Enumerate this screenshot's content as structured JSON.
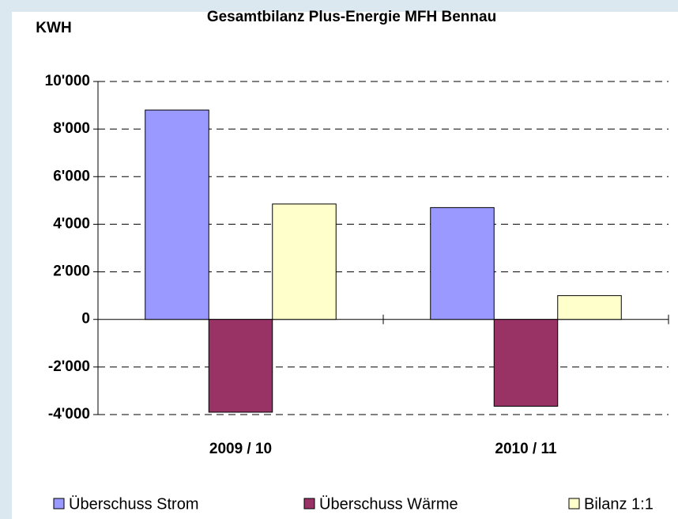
{
  "chart_data": {
    "type": "bar",
    "title": "Gesamtbilanz Plus-Energie MFH Bennau",
    "y_label": "KWH",
    "categories": [
      "2009 / 10",
      "2010 / 11"
    ],
    "series": [
      {
        "name": "Überschuss Strom",
        "color": "#9999ff",
        "values": [
          8800,
          4700
        ]
      },
      {
        "name": "Überschuss Wärme",
        "color": "#993366",
        "values": [
          -3900,
          -3650
        ]
      },
      {
        "name": "Bilanz 1:1",
        "color": "#ffffcc",
        "values": [
          4850,
          1000
        ]
      }
    ],
    "ylim": [
      -4000,
      10000
    ],
    "yticks": [
      {
        "value": -4000,
        "label": "-4'000"
      },
      {
        "value": -2000,
        "label": "-2'000"
      },
      0,
      {
        "value": 2000,
        "label": "2'000"
      },
      {
        "value": 4000,
        "label": "4'000"
      },
      {
        "value": 6000,
        "label": "6'000"
      },
      {
        "value": 8000,
        "label": "8'000"
      },
      {
        "value": 10000,
        "label": "10'000"
      }
    ],
    "grid": true
  }
}
